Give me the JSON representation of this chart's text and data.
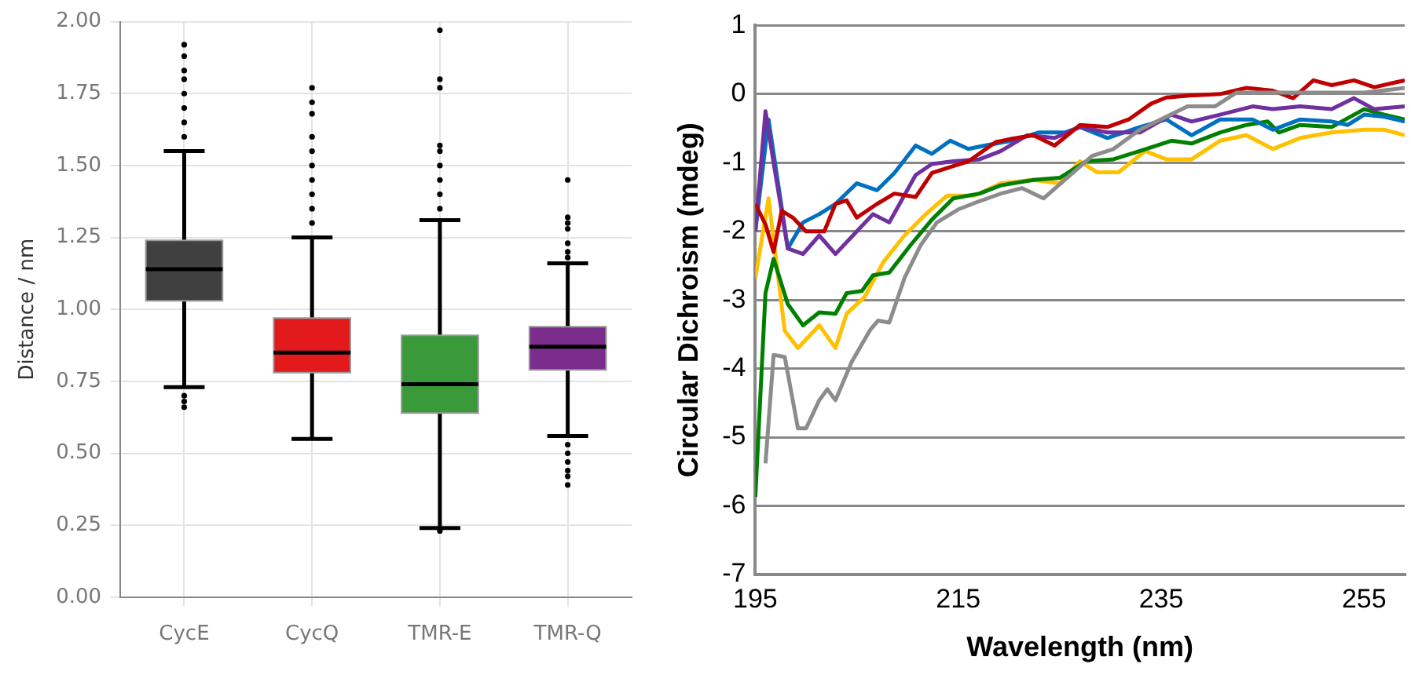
{
  "chart_data": [
    {
      "type": "box",
      "ylabel": "Distance / nm",
      "categories": [
        "CycE",
        "CycQ",
        "TMR-E",
        "TMR-Q"
      ],
      "colors": [
        "#404040",
        "#e31a1c",
        "#3a9a3a",
        "#7b2d8b"
      ],
      "ylim": [
        0,
        2
      ],
      "yticks": [
        {
          "value": 0,
          "label": "0.00"
        },
        0.25,
        {
          "value": 0.5,
          "label": "0.50"
        },
        0.75,
        {
          "value": 1,
          "label": "1.00"
        },
        1.25,
        {
          "value": 1.5,
          "label": "1.50"
        },
        1.75,
        {
          "value": 2,
          "label": "2.00"
        }
      ],
      "grid": true,
      "boxes": [
        {
          "low": 0.73,
          "q1": 1.03,
          "median": 1.14,
          "q3": 1.24,
          "high": 1.55,
          "outliers": [
            1.6,
            1.65,
            1.7,
            1.75,
            1.8,
            1.83,
            1.88,
            1.92,
            0.7,
            0.68,
            0.66
          ]
        },
        {
          "low": 0.55,
          "q1": 0.78,
          "median": 0.85,
          "q3": 0.97,
          "high": 1.25,
          "outliers": [
            1.3,
            1.35,
            1.4,
            1.45,
            1.5,
            1.55,
            1.6,
            1.68,
            1.72,
            1.77
          ]
        },
        {
          "low": 0.24,
          "q1": 0.64,
          "median": 0.74,
          "q3": 0.91,
          "high": 1.31,
          "outliers": [
            1.35,
            1.4,
            1.45,
            1.5,
            1.55,
            1.57,
            1.77,
            1.8,
            1.97,
            0.23
          ]
        },
        {
          "low": 0.56,
          "q1": 0.79,
          "median": 0.87,
          "q3": 0.94,
          "high": 1.16,
          "outliers": [
            1.18,
            1.2,
            1.23,
            1.28,
            1.3,
            1.32,
            1.45,
            0.53,
            0.5,
            0.47,
            0.44,
            0.42,
            0.39
          ]
        }
      ]
    },
    {
      "type": "line",
      "xlabel": "Wavelength (nm)",
      "ylabel": "Circular Dichroism (mdeg)",
      "xlim": [
        195,
        259
      ],
      "xticks": [
        195,
        215,
        235,
        255
      ],
      "ylim": [
        -7,
        1
      ],
      "yticks": [
        -7,
        -6,
        -5,
        -4,
        -3,
        -2,
        -1,
        0,
        1
      ],
      "grid": "y",
      "marker": "none",
      "series": [
        {
          "color": "#8c8c8c",
          "x": [
            196,
            196.8,
            197.9,
            199.2,
            200,
            201.3,
            202.1,
            202.9,
            204.5,
            206.3,
            207.1,
            208.2,
            209.7,
            211.3,
            212.9,
            215,
            217.1,
            219.2,
            221.3,
            223.4,
            225.5,
            228.2,
            230.3,
            232.9,
            235.5,
            237.6,
            240.3,
            242.4,
            246,
            248.7,
            251.8,
            255,
            259
          ],
          "values": [
            -5.38,
            -3.8,
            -3.83,
            -4.87,
            -4.87,
            -4.46,
            -4.3,
            -4.46,
            -3.9,
            -3.44,
            -3.3,
            -3.33,
            -2.68,
            -2.2,
            -1.87,
            -1.68,
            -1.56,
            -1.45,
            -1.37,
            -1.52,
            -1.25,
            -0.9,
            -0.8,
            -0.52,
            -0.33,
            -0.18,
            -0.18,
            0.02,
            0.02,
            0.02,
            0.02,
            0.02,
            0.09
          ]
        },
        {
          "color": "#c00000",
          "x": [
            195,
            196,
            196.8,
            197.6,
            198.7,
            200,
            201.8,
            202.9,
            204,
            205,
            207,
            208.7,
            210.8,
            212.4,
            214.5,
            216,
            218.7,
            220.3,
            222.4,
            224.5,
            227,
            229.7,
            231.8,
            234,
            235.5,
            238,
            240.8,
            243.4,
            246,
            248,
            250,
            251.8,
            254,
            256,
            259
          ],
          "values": [
            -1.6,
            -1.9,
            -2.3,
            -1.7,
            -1.8,
            -2.0,
            -2.0,
            -1.6,
            -1.55,
            -1.8,
            -1.6,
            -1.45,
            -1.5,
            -1.15,
            -1.05,
            -0.98,
            -0.7,
            -0.65,
            -0.6,
            -0.75,
            -0.45,
            -0.48,
            -0.37,
            -0.14,
            -0.05,
            -0.02,
            0,
            0.09,
            0.05,
            -0.06,
            0.2,
            0.13,
            0.2,
            0.1,
            0.2
          ]
        },
        {
          "color": "#7030a0",
          "x": [
            195,
            196,
            196.8,
            198.2,
            199.7,
            201.3,
            202.9,
            205,
            206.6,
            208.2,
            210.8,
            212.4,
            214.5,
            217.1,
            219.2,
            221.8,
            224.5,
            227,
            229.7,
            232.9,
            236,
            238,
            240.8,
            244,
            246,
            248.7,
            251.8,
            254,
            256,
            259
          ],
          "values": [
            -2.0,
            -0.25,
            -1.0,
            -2.25,
            -2.33,
            -2.06,
            -2.33,
            -2.0,
            -1.75,
            -1.87,
            -1.18,
            -1.02,
            -0.98,
            -0.95,
            -0.83,
            -0.6,
            -0.64,
            -0.48,
            -0.56,
            -0.56,
            -0.3,
            -0.4,
            -0.3,
            -0.18,
            -0.22,
            -0.18,
            -0.22,
            -0.06,
            -0.22,
            -0.18
          ]
        },
        {
          "color": "#0070c0",
          "x": [
            195,
            196.3,
            198.2,
            199.7,
            201.3,
            202.9,
            205,
            207,
            208.7,
            210.8,
            212.4,
            214.2,
            216,
            217.6,
            220.3,
            222.9,
            225.5,
            227,
            229.7,
            232.9,
            235.5,
            238,
            240.8,
            244,
            246,
            248.7,
            251.8,
            253.4,
            255,
            257,
            259
          ],
          "values": [
            -2.0,
            -0.37,
            -2.25,
            -1.87,
            -1.75,
            -1.6,
            -1.3,
            -1.4,
            -1.15,
            -0.75,
            -0.87,
            -0.68,
            -0.8,
            -0.75,
            -0.68,
            -0.56,
            -0.56,
            -0.48,
            -0.64,
            -0.48,
            -0.37,
            -0.6,
            -0.37,
            -0.37,
            -0.52,
            -0.37,
            -0.4,
            -0.45,
            -0.3,
            -0.33,
            -0.4
          ]
        },
        {
          "color": "#008000",
          "x": [
            195,
            196,
            196.8,
            198.2,
            199.7,
            201.3,
            202.9,
            204,
            205.5,
            206.6,
            208.2,
            210.3,
            212.4,
            214.5,
            217.1,
            219.2,
            222.4,
            225,
            227.6,
            230.3,
            232.9,
            236,
            238,
            240.8,
            243.4,
            245.5,
            246.6,
            248.7,
            251.8,
            255,
            257,
            259
          ],
          "values": [
            -5.87,
            -2.9,
            -2.4,
            -3.06,
            -3.37,
            -3.18,
            -3.2,
            -2.9,
            -2.87,
            -2.64,
            -2.6,
            -2.2,
            -1.83,
            -1.52,
            -1.45,
            -1.33,
            -1.25,
            -1.22,
            -0.98,
            -0.95,
            -0.83,
            -0.68,
            -0.72,
            -0.56,
            -0.45,
            -0.4,
            -0.56,
            -0.45,
            -0.48,
            -0.22,
            -0.3,
            -0.37
          ]
        },
        {
          "color": "#ffc000",
          "x": [
            195,
            196.3,
            197.9,
            199.2,
            201.3,
            202.9,
            204,
            205.8,
            207.6,
            209.7,
            211.8,
            213.9,
            216.6,
            219.2,
            222.4,
            225,
            227,
            228.7,
            230.8,
            233.4,
            235.5,
            238,
            240.8,
            243.4,
            246,
            248.7,
            251.8,
            255,
            257,
            259
          ],
          "values": [
            -2.68,
            -1.52,
            -3.45,
            -3.7,
            -3.37,
            -3.7,
            -3.2,
            -2.95,
            -2.45,
            -2.06,
            -1.75,
            -1.48,
            -1.48,
            -1.3,
            -1.25,
            -1.3,
            -0.98,
            -1.14,
            -1.14,
            -0.83,
            -0.95,
            -0.95,
            -0.68,
            -0.6,
            -0.8,
            -0.64,
            -0.56,
            -0.52,
            -0.52,
            -0.6
          ]
        }
      ]
    }
  ]
}
